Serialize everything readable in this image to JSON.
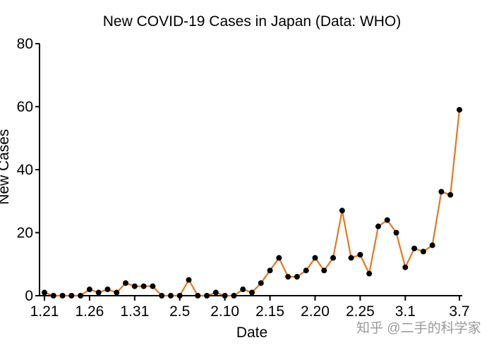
{
  "watermark": "知乎 @二手的科学家",
  "chart_data": {
    "type": "line",
    "title": "New COVID-19 Cases in Japan (Data: WHO)",
    "xlabel": "Date",
    "ylabel": "New Cases",
    "ylim": [
      0,
      80
    ],
    "yticks": [
      0,
      20,
      40,
      60,
      80
    ],
    "xticks": [
      {
        "index": 0,
        "label": "1.21"
      },
      {
        "index": 5,
        "label": "1.26"
      },
      {
        "index": 10,
        "label": "1.31"
      },
      {
        "index": 15,
        "label": "2.5"
      },
      {
        "index": 20,
        "label": "2.10"
      },
      {
        "index": 25,
        "label": "2.15"
      },
      {
        "index": 30,
        "label": "2.20"
      },
      {
        "index": 35,
        "label": "2.25"
      },
      {
        "index": 40,
        "label": "3.1"
      },
      {
        "index": 46,
        "label": "3.7"
      }
    ],
    "grid": false,
    "line_color": "#e8761e",
    "marker_color": "#000000",
    "series": [
      {
        "values": [
          1,
          0,
          0,
          0,
          0,
          2,
          1,
          2,
          1,
          4,
          3,
          3,
          3,
          0,
          0,
          0,
          5,
          0,
          0,
          1,
          0,
          0,
          2,
          1,
          4,
          8,
          12,
          6,
          6,
          8,
          12,
          8,
          12,
          27,
          12,
          13,
          7,
          22,
          24,
          20,
          9,
          15,
          14,
          16,
          33,
          32,
          59
        ]
      }
    ]
  }
}
